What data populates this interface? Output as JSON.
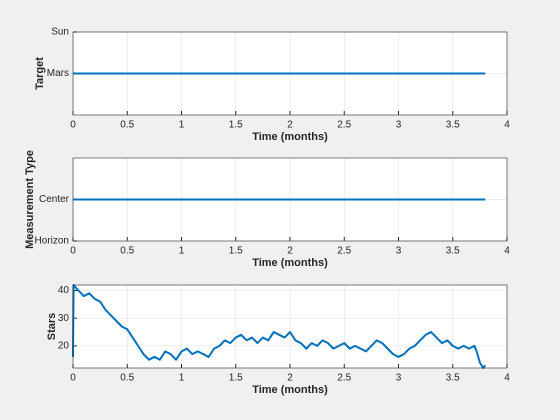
{
  "chart_data": [
    {
      "type": "line",
      "ylabel": "Target",
      "xlabel": "Time (months)",
      "xlim": [
        0,
        4
      ],
      "xticks": [
        0,
        0.5,
        1,
        1.5,
        2,
        2.5,
        3,
        3.5,
        4
      ],
      "ylim": [
        0,
        2
      ],
      "yticks": [
        {
          "value": 1,
          "label": "Mars"
        },
        {
          "value": 2,
          "label": "Sun"
        }
      ],
      "grid": true,
      "x": [
        0,
        3.8
      ],
      "series": [
        {
          "color": "#0072bd",
          "values": [
            1,
            1
          ]
        }
      ]
    },
    {
      "type": "line",
      "ylabel": "Measurement Type",
      "xlabel": "Time (months)",
      "xlim": [
        0,
        4
      ],
      "xticks": [
        0,
        0.5,
        1,
        1.5,
        2,
        2.5,
        3,
        3.5,
        4
      ],
      "ylim": [
        0,
        2
      ],
      "yticks": [
        {
          "value": 0,
          "label": "Horizon"
        },
        {
          "value": 1,
          "label": "Center"
        }
      ],
      "grid": true,
      "x": [
        0,
        3.8
      ],
      "series": [
        {
          "color": "#0072bd",
          "values": [
            1,
            1
          ]
        }
      ]
    },
    {
      "type": "line",
      "ylabel": "Stars",
      "xlabel": "Time (months)",
      "xlim": [
        0,
        4
      ],
      "xticks": [
        0,
        0.5,
        1,
        1.5,
        2,
        2.5,
        3,
        3.5,
        4
      ],
      "ylim": [
        12,
        42
      ],
      "yticks": [
        20,
        30,
        40
      ],
      "grid": true,
      "x": [
        0,
        0.005,
        0.05,
        0.1,
        0.15,
        0.2,
        0.25,
        0.3,
        0.35,
        0.4,
        0.45,
        0.5,
        0.55,
        0.6,
        0.65,
        0.7,
        0.75,
        0.8,
        0.85,
        0.9,
        0.95,
        1.0,
        1.05,
        1.1,
        1.15,
        1.2,
        1.25,
        1.3,
        1.35,
        1.4,
        1.45,
        1.5,
        1.55,
        1.6,
        1.65,
        1.7,
        1.75,
        1.8,
        1.85,
        1.9,
        1.95,
        2.0,
        2.05,
        2.1,
        2.15,
        2.2,
        2.25,
        2.3,
        2.35,
        2.4,
        2.45,
        2.5,
        2.55,
        2.6,
        2.65,
        2.7,
        2.75,
        2.8,
        2.85,
        2.9,
        2.95,
        3.0,
        3.05,
        3.1,
        3.15,
        3.2,
        3.25,
        3.3,
        3.35,
        3.4,
        3.45,
        3.5,
        3.55,
        3.6,
        3.65,
        3.7,
        3.72,
        3.75,
        3.78,
        3.8
      ],
      "series": [
        {
          "color": "#0072bd",
          "values": [
            16,
            42,
            40,
            38,
            39,
            37,
            36,
            33,
            31,
            29,
            27,
            26,
            23,
            20,
            17,
            15,
            16,
            15,
            18,
            17,
            15,
            18,
            19,
            17,
            18,
            17,
            16,
            19,
            20,
            22,
            21,
            23,
            24,
            22,
            23,
            21,
            23,
            22,
            25,
            24,
            23,
            25,
            22,
            21,
            19,
            21,
            20,
            22,
            21,
            19,
            20,
            21,
            19,
            20,
            19,
            18,
            20,
            22,
            21,
            19,
            17,
            16,
            17,
            19,
            20,
            22,
            24,
            25,
            23,
            21,
            22,
            20,
            19,
            20,
            19,
            20,
            18,
            14,
            12,
            13
          ]
        }
      ]
    }
  ]
}
